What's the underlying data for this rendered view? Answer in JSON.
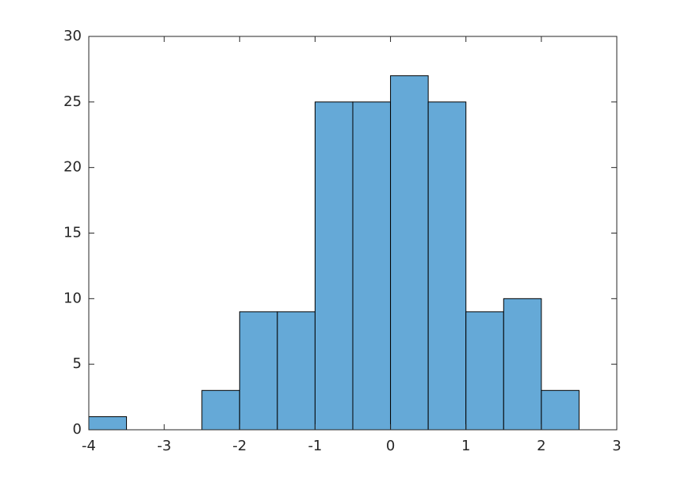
{
  "chart_data": {
    "type": "histogram",
    "bins": [
      -4,
      -3.5,
      -3,
      -2.5,
      -2,
      -1.5,
      -1,
      -0.5,
      0,
      0.5,
      1,
      1.5,
      2,
      2.5
    ],
    "values": [
      1,
      0,
      0,
      3,
      9,
      9,
      25,
      25,
      27,
      25,
      9,
      10,
      3
    ],
    "color": "#65a9d7",
    "xlim": [
      -4,
      3
    ],
    "xticks": [
      -4,
      -3,
      -2,
      -1,
      0,
      1,
      2,
      3
    ],
    "ylim": [
      0,
      30
    ],
    "yticks": [
      0,
      5,
      10,
      15,
      20,
      25,
      30
    ]
  }
}
